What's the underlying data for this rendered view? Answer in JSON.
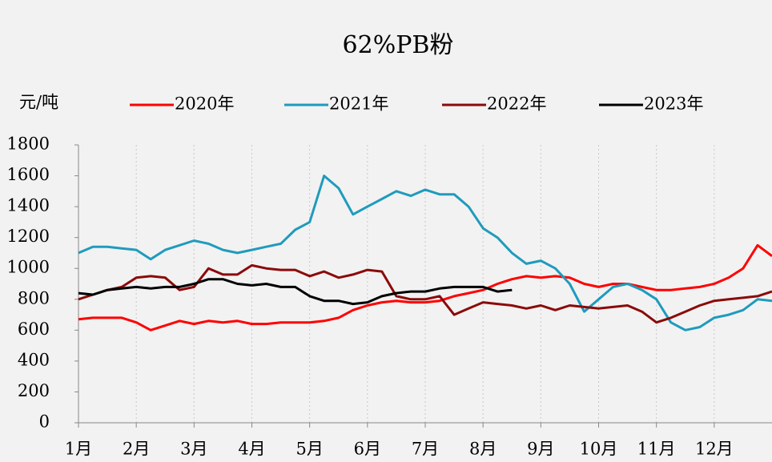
{
  "chart_data": {
    "type": "line",
    "title": "62%PB粉",
    "y_label": "元/吨",
    "x": [
      1,
      1.25,
      1.5,
      1.75,
      2,
      2.25,
      2.5,
      2.75,
      3,
      3.25,
      3.5,
      3.75,
      4,
      4.25,
      4.5,
      4.75,
      5,
      5.25,
      5.5,
      5.75,
      6,
      6.25,
      6.5,
      6.75,
      7,
      7.25,
      7.5,
      7.75,
      8,
      8.25,
      8.5,
      8.75,
      9,
      9.25,
      9.5,
      9.75,
      10,
      10.25,
      10.5,
      10.75,
      11,
      11.25,
      11.5,
      11.75,
      12,
      12.25,
      12.5,
      12.75,
      13
    ],
    "series": [
      {
        "name": "2020年",
        "color": "#ff0000",
        "values": [
          670,
          680,
          680,
          680,
          650,
          600,
          630,
          660,
          640,
          660,
          650,
          660,
          640,
          640,
          650,
          650,
          650,
          660,
          680,
          730,
          760,
          780,
          790,
          780,
          780,
          790,
          820,
          840,
          860,
          900,
          930,
          950,
          940,
          950,
          940,
          900,
          880,
          900,
          900,
          880,
          860,
          860,
          870,
          880,
          900,
          940,
          1000,
          1150,
          1080
        ]
      },
      {
        "name": "2021年",
        "color": "#1f9bbd",
        "values": [
          1100,
          1140,
          1140,
          1130,
          1120,
          1060,
          1120,
          1150,
          1180,
          1160,
          1120,
          1100,
          1120,
          1140,
          1160,
          1250,
          1300,
          1600,
          1520,
          1350,
          1400,
          1450,
          1500,
          1470,
          1510,
          1480,
          1480,
          1400,
          1260,
          1200,
          1100,
          1030,
          1050,
          1000,
          900,
          720,
          800,
          880,
          900,
          860,
          800,
          650,
          600,
          620,
          680,
          700,
          730,
          800,
          790
        ]
      },
      {
        "name": "2022年",
        "color": "#8b0a0a",
        "values": [
          800,
          830,
          860,
          880,
          940,
          950,
          940,
          860,
          880,
          1000,
          960,
          960,
          1020,
          1000,
          990,
          990,
          950,
          980,
          940,
          960,
          990,
          980,
          820,
          800,
          800,
          820,
          700,
          740,
          780,
          770,
          760,
          740,
          760,
          730,
          760,
          750,
          740,
          750,
          760,
          720,
          650,
          680,
          720,
          760,
          790,
          800,
          810,
          820,
          850
        ]
      },
      {
        "name": "2023年",
        "color": "#000000",
        "values": [
          840,
          830,
          860,
          870,
          880,
          870,
          880,
          880,
          900,
          930,
          930,
          900,
          890,
          900,
          880,
          880,
          820,
          790,
          790,
          770,
          780,
          820,
          840,
          850,
          850,
          870,
          880,
          880,
          880,
          850,
          860,
          null,
          null,
          null,
          null,
          null,
          null,
          null,
          null,
          null,
          null,
          null,
          null,
          null,
          null,
          null,
          null,
          null,
          null
        ]
      }
    ],
    "xlim": [
      1,
      13
    ],
    "xticks": [
      {
        "value": 1,
        "label": "1月"
      },
      {
        "value": 2,
        "label": "2月"
      },
      {
        "value": 3,
        "label": "3月"
      },
      {
        "value": 4,
        "label": "4月"
      },
      {
        "value": 5,
        "label": "5月"
      },
      {
        "value": 6,
        "label": "6月"
      },
      {
        "value": 7,
        "label": "7月"
      },
      {
        "value": 8,
        "label": "8月"
      },
      {
        "value": 9,
        "label": "9月"
      },
      {
        "value": 10,
        "label": "10月"
      },
      {
        "value": 11,
        "label": "11月"
      },
      {
        "value": 12,
        "label": "12月"
      }
    ],
    "ylim": [
      0,
      1800
    ],
    "yticks": [
      0,
      200,
      400,
      600,
      800,
      1000,
      1200,
      1400,
      1600,
      1800
    ],
    "grid": true
  }
}
